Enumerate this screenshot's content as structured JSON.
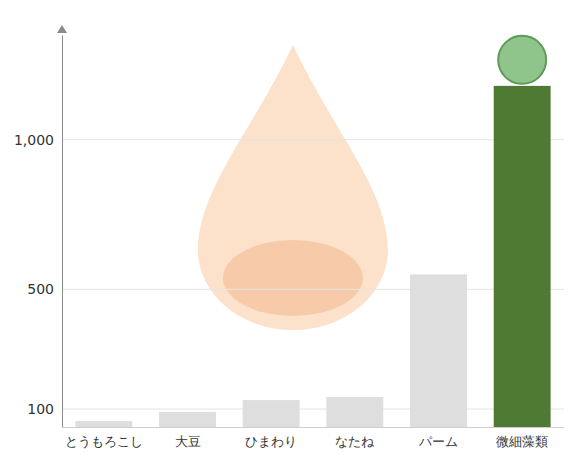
{
  "chart_data": {
    "type": "bar",
    "categories": [
      "とうもろこし",
      "大豆",
      "ひまわり",
      "なたね",
      "パーム",
      "微細藻類"
    ],
    "values": [
      60,
      90,
      130,
      140,
      550,
      1180
    ],
    "colors": [
      "#dedede",
      "#dedede",
      "#dedede",
      "#dedede",
      "#dedede",
      "#4f7a33"
    ],
    "ylim": [
      40,
      1350
    ],
    "yticks": [
      100,
      500,
      {
        "value": 1000,
        "label": "1,000"
      }
    ],
    "grid": true
  }
}
